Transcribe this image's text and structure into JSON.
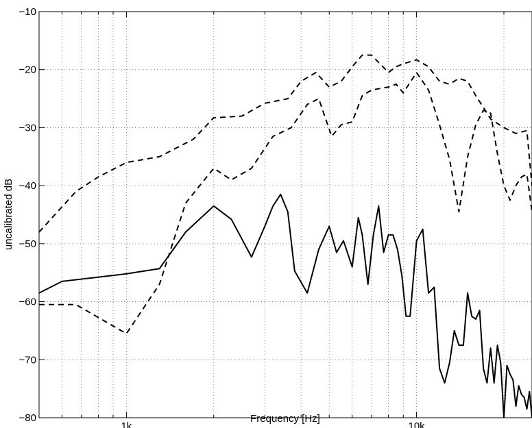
{
  "chart_data": {
    "type": "line",
    "xlabel": "Frequency [Hz]",
    "ylabel": "uncalibrated dB",
    "xscale": "log",
    "xlim": [
      500,
      25000
    ],
    "ylim": [
      -80,
      -10
    ],
    "grid": true,
    "x_ticks": [
      {
        "value": 1000,
        "label": "1k"
      },
      {
        "value": 10000,
        "label": "10k"
      }
    ],
    "y_ticks": [
      -10,
      -20,
      -30,
      -40,
      -50,
      -60,
      -70,
      -80
    ],
    "series": [
      {
        "style": "dashed",
        "x": [
          500,
          670,
          800,
          1000,
          1300,
          1700,
          2000,
          2500,
          3000,
          3600,
          4000,
          4500,
          5000,
          5500,
          6000,
          6500,
          7000,
          8000,
          8500,
          9000,
          10000,
          11000,
          12000,
          13000,
          14000,
          15000,
          16000,
          17000,
          18000,
          20000,
          22000,
          24000,
          25000
        ],
        "y": [
          -48,
          -41,
          -38.5,
          -36,
          -35,
          -32,
          -28.3,
          -28,
          -25.8,
          -25,
          -22,
          -20.5,
          -23,
          -22,
          -19.5,
          -17.5,
          -17.5,
          -20.5,
          -19.5,
          -19,
          -18.3,
          -19.5,
          -22,
          -22.5,
          -21.5,
          -22,
          -24.5,
          -26.5,
          -28.5,
          -30,
          -31,
          -30.5,
          -40
        ]
      },
      {
        "style": "dashed",
        "x": [
          500,
          670,
          1000,
          1300,
          1600,
          2000,
          2300,
          2700,
          3200,
          3700,
          4200,
          4600,
          5100,
          5500,
          6000,
          6500,
          7000,
          8000,
          8500,
          9000,
          10000,
          11000,
          12000,
          13000,
          14000,
          15000,
          16000,
          17000,
          18000,
          19000,
          20000,
          21000,
          22000,
          23000,
          24000,
          25000
        ],
        "y": [
          -60.5,
          -60.5,
          -65.5,
          -57,
          -43,
          -37,
          -39,
          -37,
          -31.5,
          -30,
          -26,
          -25,
          -31.5,
          -29.5,
          -29,
          -24.5,
          -23.5,
          -23,
          -22.5,
          -24,
          -20.5,
          -23.5,
          -29.5,
          -35.5,
          -44.5,
          -35,
          -29.5,
          -27,
          -27.5,
          -34.5,
          -40,
          -42.5,
          -40,
          -38.5,
          -38,
          -44.5
        ]
      },
      {
        "style": "solid",
        "x": [
          500,
          600,
          1000,
          1300,
          1600,
          2000,
          2300,
          2700,
          3000,
          3200,
          3400,
          3600,
          3800,
          4200,
          4600,
          5000,
          5300,
          5600,
          6000,
          6300,
          6500,
          6800,
          7100,
          7400,
          7700,
          8000,
          8300,
          8600,
          8900,
          9200,
          9500,
          10000,
          10500,
          11000,
          11500,
          12000,
          12500,
          13000,
          13500,
          14000,
          14500,
          15000,
          15500,
          16000,
          16500,
          17000,
          17500,
          18000,
          18500,
          19000,
          19500,
          20000,
          20500,
          21000,
          21500,
          22000,
          22500,
          23000,
          23500,
          24000,
          24500,
          25000
        ],
        "y": [
          -58.5,
          -56.5,
          -55.2,
          -54.3,
          -48,
          -43.5,
          -45.8,
          -52.3,
          -47,
          -43.5,
          -41.5,
          -44.5,
          -54.7,
          -58.5,
          -51,
          -47,
          -51.5,
          -49.5,
          -54,
          -45.5,
          -48.5,
          -57,
          -48.5,
          -43.5,
          -51.5,
          -48.5,
          -48.5,
          -51,
          -55.5,
          -62.5,
          -62.5,
          -49.5,
          -47.5,
          -58.5,
          -57.5,
          -71.5,
          -74,
          -70.5,
          -65,
          -67.5,
          -67.5,
          -58.5,
          -62.5,
          -63,
          -61.5,
          -71.5,
          -74,
          -68,
          -74,
          -67.5,
          -70.5,
          -80,
          -71,
          -72.5,
          -73.5,
          -78,
          -74.5,
          -76,
          -76.5,
          -78.5,
          -75.5,
          -80
        ]
      }
    ]
  }
}
